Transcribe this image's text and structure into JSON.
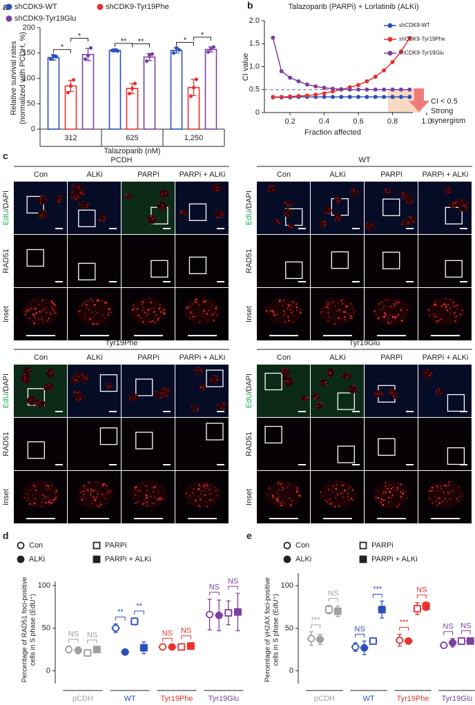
{
  "chart_data": [
    {
      "type": "bar",
      "panel": "a",
      "x_label": "Talazoparib (nM)",
      "y_label": [
        "Relative survival rates",
        "(normalized with PCDH, %)"
      ],
      "categories": [
        "312",
        "625",
        "1,250"
      ],
      "series": [
        {
          "name": "shCDK9-WT",
          "color": "#2a4fbd",
          "values": [
            141,
            155,
            155
          ],
          "errors": [
            5,
            3,
            5
          ],
          "points": [
            [
              138,
              145,
              143
            ],
            [
              155,
              156,
              154
            ],
            [
              150,
              160,
              156
            ]
          ]
        },
        {
          "name": "shCDK9-Tyr19Phe",
          "color": "#e8312f",
          "values": [
            85,
            80,
            82
          ],
          "errors": [
            11,
            10,
            16
          ],
          "points": [
            [
              72,
              85,
              97
            ],
            [
              70,
              80,
              90
            ],
            [
              65,
              82,
              98
            ]
          ]
        },
        {
          "name": "shCDK9-Tyr19Glu",
          "color": "#7b3fa0",
          "values": [
            147,
            142,
            157
          ],
          "errors": [
            12,
            7,
            5
          ],
          "points": [
            [
              138,
              145,
              160
            ],
            [
              134,
              146,
              148
            ],
            [
              152,
              158,
              162
            ]
          ]
        }
      ],
      "ylim": [
        0,
        200
      ],
      "yticks": [
        0,
        50,
        100,
        150,
        200
      ],
      "significance": [
        [
          "*",
          "*"
        ],
        [
          "**",
          "**"
        ],
        [
          "*",
          "*"
        ]
      ]
    },
    {
      "type": "line",
      "panel": "b",
      "title": "Talazoparib (PARPi) + Lorlatinib (ALKi)",
      "x_label": "Fraction affected",
      "y_label": "CI value",
      "x": [
        0.1,
        0.15,
        0.2,
        0.25,
        0.3,
        0.35,
        0.4,
        0.45,
        0.5,
        0.55,
        0.6,
        0.65,
        0.7,
        0.75,
        0.8,
        0.85,
        0.9
      ],
      "series": [
        {
          "name": "shCDK9-WT",
          "color": "#2a4fbd",
          "values": [
            0.33,
            0.33,
            0.33,
            0.34,
            0.34,
            0.34,
            0.34,
            0.34,
            0.34,
            0.34,
            0.34,
            0.34,
            0.34,
            0.34,
            0.34,
            0.34,
            0.34
          ]
        },
        {
          "name": "shCDK9-Tyr19Phe",
          "color": "#e8312f",
          "values": [
            0.34,
            0.34,
            0.35,
            0.36,
            0.37,
            0.39,
            0.42,
            0.46,
            0.5,
            0.55,
            0.6,
            0.68,
            0.78,
            0.92,
            1.1,
            1.33,
            1.62
          ]
        },
        {
          "name": "shCDK9-Tyr19Glu",
          "color": "#7b3fa0",
          "values": [
            1.63,
            0.9,
            0.76,
            0.68,
            0.61,
            0.57,
            0.54,
            0.52,
            0.51,
            0.5,
            0.5,
            0.5,
            0.5,
            0.5,
            0.5,
            0.5,
            0.5
          ]
        }
      ],
      "xlim": [
        0.05,
        1.0
      ],
      "xticks": [
        0.2,
        0.4,
        0.6,
        0.8,
        {
          "value": 1.0,
          "label": "1.0"
        }
      ],
      "ylim": [
        0,
        2.0
      ],
      "yticks": [
        0,
        0.5,
        {
          "value": 1.0,
          "label": "1.0"
        },
        1.5,
        {
          "value": 2.0,
          "label": "2.0"
        }
      ],
      "threshold": 0.5,
      "annotations": [
        "CI < 0.5",
        "Strong",
        "synergism"
      ]
    },
    {
      "type": "dot",
      "panel": "d",
      "y_label": [
        "Percentage of RAD51 foci-positive",
        "cells in S phase (EdU⁺)"
      ],
      "categories": [
        "pCDH",
        "WT",
        "Tyr19Phe",
        "Tyr19Glu"
      ],
      "category_colors": [
        "#a0a0a0",
        "#2a4fbd",
        "#e8312f",
        "#7b3fa0"
      ],
      "series": [
        {
          "name": "Con",
          "marker": "circle",
          "filled": false,
          "values": [
            25,
            50,
            28,
            66
          ],
          "errors": [
            4,
            5,
            2,
            18
          ]
        },
        {
          "name": "ALKi",
          "marker": "circle",
          "filled": true,
          "values": [
            24,
            22,
            28,
            65
          ],
          "errors": [
            4,
            2,
            2,
            18
          ]
        },
        {
          "name": "PARPi",
          "marker": "square",
          "filled": false,
          "values": [
            21,
            58,
            28,
            68
          ],
          "errors": [
            4,
            4,
            3,
            14
          ]
        },
        {
          "name": "PARPi + ALKi",
          "marker": "square",
          "filled": true,
          "values": [
            25,
            27,
            29,
            69
          ],
          "errors": [
            3,
            7,
            4,
            22
          ]
        }
      ],
      "ylim": [
        -15,
        100
      ],
      "yticks": [
        0,
        50,
        100
      ],
      "significance": [
        [
          "NS",
          "NS"
        ],
        [
          "**",
          "**"
        ],
        [
          "NS",
          "NS"
        ],
        [
          "NS",
          "NS"
        ]
      ]
    },
    {
      "type": "dot",
      "panel": "e",
      "y_label": [
        "Percentage of γH2AX foci-positive",
        "cells in S phase (EdU⁺)"
      ],
      "categories": [
        "pCDH",
        "WT",
        "Tyr19Phe",
        "Tyr19Glu"
      ],
      "category_colors": [
        "#a0a0a0",
        "#2a4fbd",
        "#e8312f",
        "#7b3fa0"
      ],
      "series": [
        {
          "name": "Con",
          "marker": "circle",
          "filled": false,
          "values": [
            38,
            28,
            36,
            30
          ],
          "errors": [
            8,
            5,
            7,
            3
          ]
        },
        {
          "name": "ALKi",
          "marker": "circle",
          "filled": true,
          "values": [
            37,
            27,
            35,
            33
          ],
          "errors": [
            6,
            8,
            3,
            5
          ]
        },
        {
          "name": "PARPi",
          "marker": "square",
          "filled": false,
          "values": [
            72,
            35,
            73,
            35
          ],
          "errors": [
            5,
            3,
            7,
            4
          ]
        },
        {
          "name": "PARPi + ALKi",
          "marker": "square",
          "filled": true,
          "values": [
            70,
            72,
            76,
            35
          ],
          "errors": [
            6,
            10,
            5,
            2
          ]
        }
      ],
      "ylim": [
        -15,
        110
      ],
      "yticks": [
        0,
        50,
        100
      ],
      "significance": [
        [
          "***",
          "NS"
        ],
        [
          "NS",
          "***"
        ],
        [
          "***",
          "NS"
        ],
        [
          "NS",
          "NS"
        ]
      ]
    }
  ],
  "microscopy": {
    "panel": "c",
    "rows": [
      [
        "EdU",
        "/DAPI"
      ],
      [
        "RAD51"
      ],
      [
        "Inset"
      ]
    ],
    "columns": [
      "Con",
      "ALKi",
      "PARPi",
      "PARPi + ALKi"
    ],
    "blocks": [
      "PCDH",
      "WT",
      "Tyr19Phe",
      "Tyr19Glu"
    ]
  }
}
